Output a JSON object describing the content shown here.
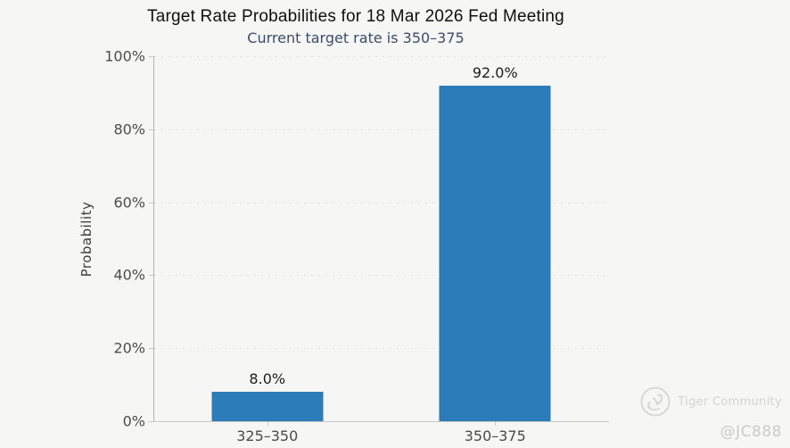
{
  "header": {
    "title": "Target Rate Probabilities for 18 Mar 2026 Fed Meeting",
    "subtitle": "Current target rate is 350–375"
  },
  "chart_data": {
    "type": "bar",
    "title": "Target Rate Probabilities for 18 Mar 2026 Fed Meeting",
    "subtitle": "Current target rate is 350–375",
    "categories": [
      "325–350",
      "350–375"
    ],
    "values": [
      8.0,
      92.0
    ],
    "value_labels": [
      "8.0%",
      "92.0%"
    ],
    "xlabel": "",
    "ylabel": "Probability",
    "ylim": [
      0,
      100
    ],
    "yticks": [
      0,
      20,
      40,
      60,
      80,
      100
    ],
    "ytick_labels": [
      "0%",
      "20%",
      "40%",
      "60%",
      "80%",
      "100%"
    ],
    "grid": "horizontal-dotted",
    "legend": "none",
    "bar_color": "#2b7cb9"
  },
  "watermark": {
    "brand": "Tiger Community",
    "user": "@JC888"
  }
}
